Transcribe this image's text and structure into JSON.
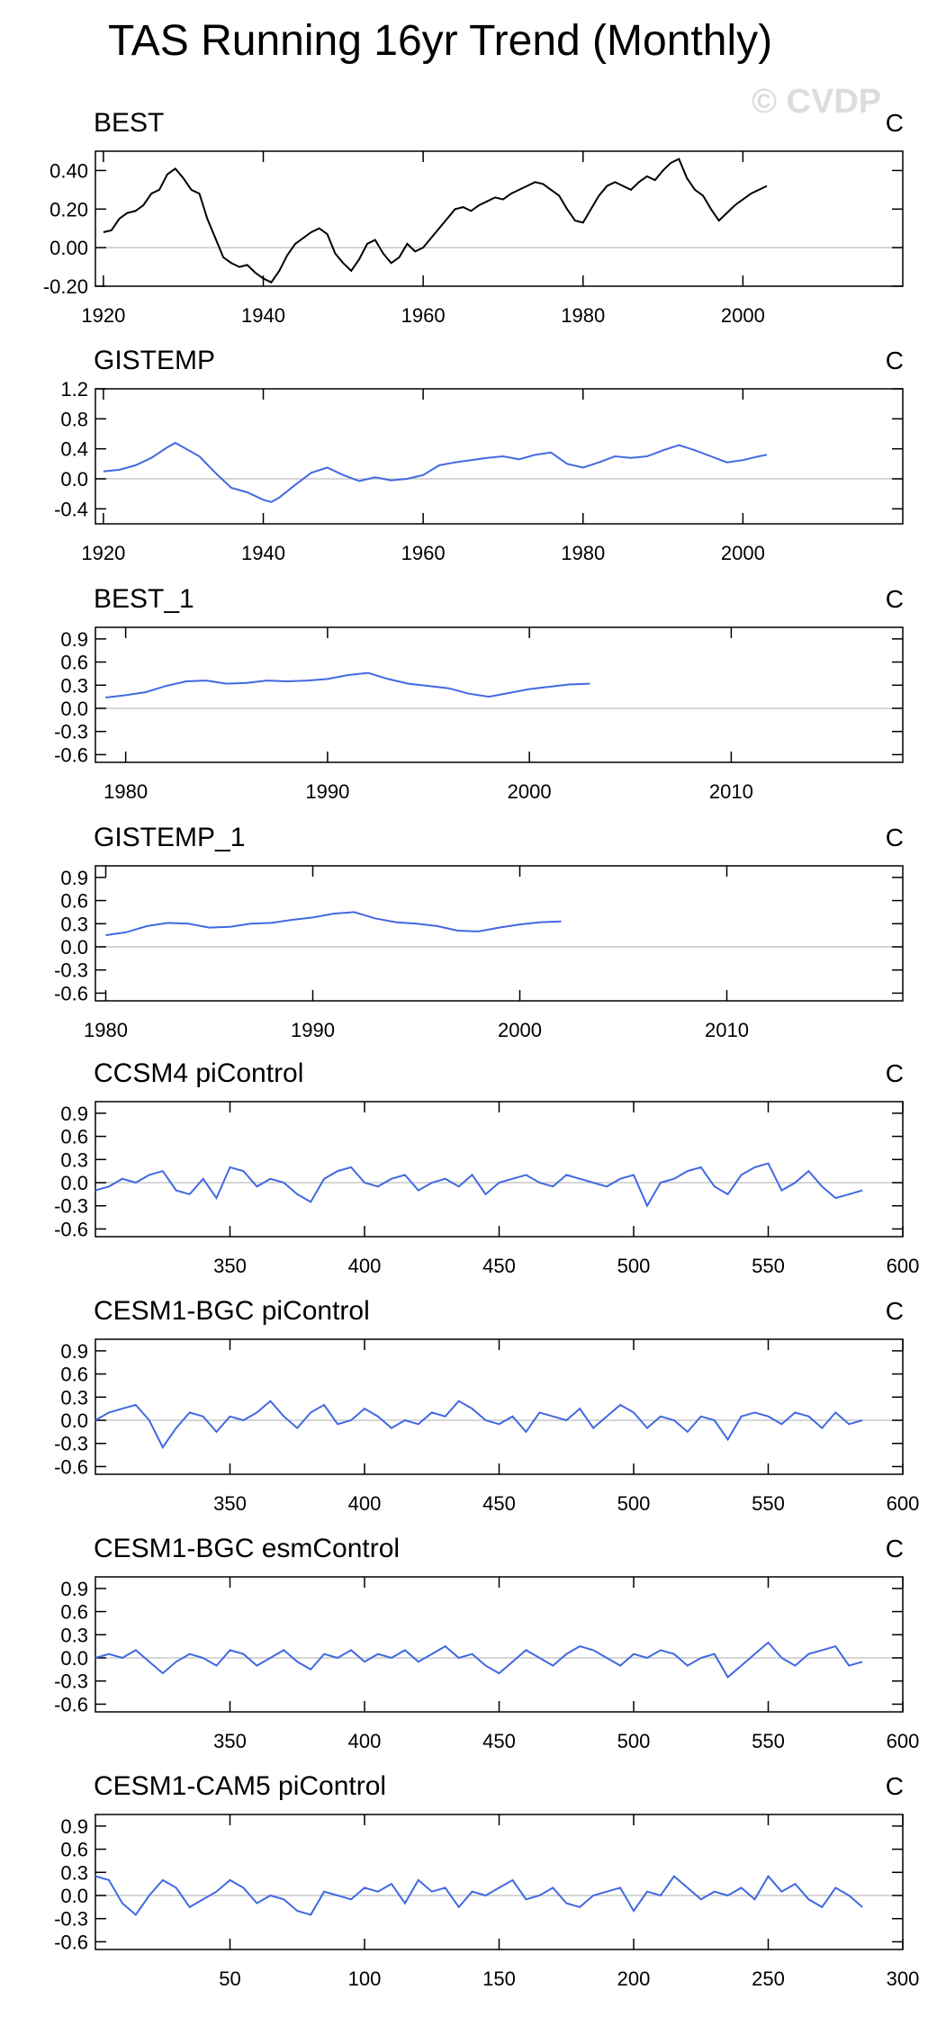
{
  "page": {
    "title": "TAS Running 16yr Trend (Monthly)",
    "watermark": "© CVDP"
  },
  "chart_data": [
    {
      "type": "line",
      "title": "BEST",
      "units": "C",
      "series_color": "#000000",
      "xlim": [
        1919,
        2020
      ],
      "xticks": [
        1920,
        1940,
        1960,
        1980,
        2000
      ],
      "ylim": [
        -0.2,
        0.5
      ],
      "yticks": [
        -0.2,
        0,
        0.2,
        0.4
      ],
      "ytick_labels": [
        "-0.20",
        "0.00",
        "0.20",
        "0.40"
      ],
      "x": [
        1920,
        1921,
        1922,
        1923,
        1924,
        1925,
        1926,
        1927,
        1928,
        1929,
        1930,
        1931,
        1932,
        1933,
        1934,
        1935,
        1936,
        1937,
        1938,
        1939,
        1940,
        1941,
        1942,
        1943,
        1944,
        1945,
        1946,
        1947,
        1948,
        1949,
        1950,
        1951,
        1952,
        1953,
        1954,
        1955,
        1956,
        1957,
        1958,
        1959,
        1960,
        1961,
        1962,
        1963,
        1964,
        1965,
        1966,
        1967,
        1968,
        1969,
        1970,
        1971,
        1972,
        1973,
        1974,
        1975,
        1976,
        1977,
        1978,
        1979,
        1980,
        1981,
        1982,
        1983,
        1984,
        1985,
        1986,
        1987,
        1988,
        1989,
        1990,
        1991,
        1992,
        1993,
        1994,
        1995,
        1996,
        1997,
        1998,
        1999,
        2000,
        2001,
        2002,
        2003
      ],
      "values": [
        0.08,
        0.09,
        0.15,
        0.18,
        0.19,
        0.22,
        0.28,
        0.3,
        0.38,
        0.41,
        0.36,
        0.3,
        0.28,
        0.15,
        0.05,
        -0.05,
        -0.08,
        -0.1,
        -0.09,
        -0.13,
        -0.16,
        -0.18,
        -0.12,
        -0.04,
        0.02,
        0.05,
        0.08,
        0.1,
        0.07,
        -0.03,
        -0.08,
        -0.12,
        -0.06,
        0.02,
        0.04,
        -0.03,
        -0.08,
        -0.05,
        0.02,
        -0.02,
        0.0,
        0.05,
        0.1,
        0.15,
        0.2,
        0.21,
        0.19,
        0.22,
        0.24,
        0.26,
        0.25,
        0.28,
        0.3,
        0.32,
        0.34,
        0.33,
        0.3,
        0.27,
        0.2,
        0.14,
        0.13,
        0.2,
        0.27,
        0.32,
        0.34,
        0.32,
        0.3,
        0.34,
        0.37,
        0.35,
        0.4,
        0.44,
        0.46,
        0.36,
        0.3,
        0.27,
        0.2,
        0.14,
        0.18,
        0.22,
        0.25,
        0.28,
        0.3,
        0.32
      ]
    },
    {
      "type": "line",
      "title": "GISTEMP",
      "units": "C",
      "series_color": "#4169e1",
      "xlim": [
        1919,
        2020
      ],
      "xticks": [
        1920,
        1940,
        1960,
        1980,
        2000
      ],
      "ylim": [
        -0.6,
        1.2
      ],
      "yticks": [
        -0.4,
        0,
        0.4,
        0.8,
        1.2
      ],
      "ytick_labels": [
        "-0.4",
        "0.0",
        "0.4",
        "0.8",
        "1.2"
      ],
      "x": [
        1920,
        1922,
        1924,
        1926,
        1928,
        1929,
        1930,
        1932,
        1934,
        1936,
        1938,
        1940,
        1941,
        1942,
        1944,
        1946,
        1948,
        1950,
        1952,
        1954,
        1956,
        1958,
        1960,
        1962,
        1964,
        1966,
        1968,
        1970,
        1972,
        1974,
        1976,
        1978,
        1980,
        1982,
        1984,
        1986,
        1988,
        1990,
        1992,
        1994,
        1996,
        1998,
        2000,
        2002,
        2003
      ],
      "values": [
        0.1,
        0.12,
        0.18,
        0.28,
        0.42,
        0.48,
        0.42,
        0.3,
        0.08,
        -0.12,
        -0.18,
        -0.28,
        -0.31,
        -0.25,
        -0.08,
        0.08,
        0.15,
        0.05,
        -0.03,
        0.02,
        -0.02,
        0.0,
        0.05,
        0.18,
        0.22,
        0.25,
        0.28,
        0.3,
        0.26,
        0.32,
        0.35,
        0.2,
        0.15,
        0.22,
        0.3,
        0.28,
        0.3,
        0.38,
        0.45,
        0.38,
        0.3,
        0.22,
        0.25,
        0.3,
        0.32
      ]
    },
    {
      "type": "line",
      "title": "BEST_1",
      "units": "C",
      "series_color": "#4169e1",
      "xlim": [
        1978.5,
        2018.5
      ],
      "xticks": [
        1980,
        1990,
        2000,
        2010
      ],
      "ylim": [
        -0.7,
        1.05
      ],
      "yticks": [
        -0.6,
        -0.3,
        0,
        0.3,
        0.6,
        0.9
      ],
      "ytick_labels": [
        "-0.6",
        "-0.3",
        "0.0",
        "0.3",
        "0.6",
        "0.9"
      ],
      "x": [
        1979,
        1980,
        1981,
        1982,
        1983,
        1984,
        1985,
        1986,
        1987,
        1988,
        1989,
        1990,
        1991,
        1992,
        1993,
        1994,
        1995,
        1996,
        1997,
        1998,
        1999,
        2000,
        2001,
        2002,
        2003
      ],
      "values": [
        0.14,
        0.17,
        0.21,
        0.29,
        0.35,
        0.36,
        0.32,
        0.33,
        0.36,
        0.35,
        0.36,
        0.38,
        0.43,
        0.46,
        0.38,
        0.32,
        0.29,
        0.26,
        0.19,
        0.15,
        0.2,
        0.25,
        0.28,
        0.31,
        0.32
      ]
    },
    {
      "type": "line",
      "title": "GISTEMP_1",
      "units": "C",
      "series_color": "#4169e1",
      "xlim": [
        1979.5,
        2018.5
      ],
      "xticks": [
        1980,
        1990,
        2000,
        2010
      ],
      "ylim": [
        -0.7,
        1.05
      ],
      "yticks": [
        -0.6,
        -0.3,
        0,
        0.3,
        0.6,
        0.9
      ],
      "ytick_labels": [
        "-0.6",
        "-0.3",
        "0.0",
        "0.3",
        "0.6",
        "0.9"
      ],
      "x": [
        1980,
        1981,
        1982,
        1983,
        1984,
        1985,
        1986,
        1987,
        1988,
        1989,
        1990,
        1991,
        1992,
        1993,
        1994,
        1995,
        1996,
        1997,
        1998,
        1999,
        2000,
        2001,
        2002
      ],
      "values": [
        0.15,
        0.19,
        0.27,
        0.31,
        0.3,
        0.25,
        0.26,
        0.3,
        0.31,
        0.35,
        0.38,
        0.43,
        0.45,
        0.37,
        0.32,
        0.3,
        0.27,
        0.21,
        0.2,
        0.25,
        0.29,
        0.32,
        0.33
      ]
    },
    {
      "type": "line",
      "title": "CCSM4 piControl",
      "units": "C",
      "series_color": "#4169e1",
      "xlim": [
        300,
        600
      ],
      "xticks": [
        350,
        400,
        450,
        500,
        550,
        600
      ],
      "ylim": [
        -0.7,
        1.05
      ],
      "yticks": [
        -0.6,
        -0.3,
        0,
        0.3,
        0.6,
        0.9
      ],
      "ytick_labels": [
        "-0.6",
        "-0.3",
        "0.0",
        "0.3",
        "0.6",
        "0.9"
      ],
      "x": [
        300,
        305,
        310,
        315,
        320,
        325,
        330,
        335,
        340,
        345,
        350,
        355,
        360,
        365,
        370,
        375,
        380,
        385,
        390,
        395,
        400,
        405,
        410,
        415,
        420,
        425,
        430,
        435,
        440,
        445,
        450,
        455,
        460,
        465,
        470,
        475,
        480,
        485,
        490,
        495,
        500,
        505,
        510,
        515,
        520,
        525,
        530,
        535,
        540,
        545,
        550,
        555,
        560,
        565,
        570,
        575,
        580,
        585
      ],
      "values": [
        -0.1,
        -0.05,
        0.05,
        0.0,
        0.1,
        0.15,
        -0.1,
        -0.15,
        0.05,
        -0.2,
        0.2,
        0.15,
        -0.05,
        0.05,
        0.0,
        -0.15,
        -0.25,
        0.05,
        0.15,
        0.2,
        0.0,
        -0.05,
        0.05,
        0.1,
        -0.1,
        0.0,
        0.05,
        -0.05,
        0.1,
        -0.15,
        0.0,
        0.05,
        0.1,
        0.0,
        -0.05,
        0.1,
        0.05,
        0.0,
        -0.05,
        0.05,
        0.1,
        -0.3,
        0.0,
        0.05,
        0.15,
        0.2,
        -0.05,
        -0.15,
        0.1,
        0.2,
        0.25,
        -0.1,
        0.0,
        0.15,
        -0.05,
        -0.2,
        -0.15,
        -0.1
      ]
    },
    {
      "type": "line",
      "title": "CESM1-BGC piControl",
      "units": "C",
      "series_color": "#4169e1",
      "xlim": [
        300,
        600
      ],
      "xticks": [
        350,
        400,
        450,
        500,
        550,
        600
      ],
      "ylim": [
        -0.7,
        1.05
      ],
      "yticks": [
        -0.6,
        -0.3,
        0,
        0.3,
        0.6,
        0.9
      ],
      "ytick_labels": [
        "-0.6",
        "-0.3",
        "0.0",
        "0.3",
        "0.6",
        "0.9"
      ],
      "x": [
        300,
        305,
        310,
        315,
        320,
        325,
        330,
        335,
        340,
        345,
        350,
        355,
        360,
        365,
        370,
        375,
        380,
        385,
        390,
        395,
        400,
        405,
        410,
        415,
        420,
        425,
        430,
        435,
        440,
        445,
        450,
        455,
        460,
        465,
        470,
        475,
        480,
        485,
        490,
        495,
        500,
        505,
        510,
        515,
        520,
        525,
        530,
        535,
        540,
        545,
        550,
        555,
        560,
        565,
        570,
        575,
        580,
        585
      ],
      "values": [
        0.0,
        0.1,
        0.15,
        0.2,
        0.0,
        -0.35,
        -0.1,
        0.1,
        0.05,
        -0.15,
        0.05,
        0.0,
        0.1,
        0.25,
        0.05,
        -0.1,
        0.1,
        0.2,
        -0.05,
        0.0,
        0.15,
        0.05,
        -0.1,
        0.0,
        -0.05,
        0.1,
        0.05,
        0.25,
        0.15,
        0.0,
        -0.05,
        0.05,
        -0.15,
        0.1,
        0.05,
        0.0,
        0.15,
        -0.1,
        0.05,
        0.2,
        0.1,
        -0.1,
        0.05,
        0.0,
        -0.15,
        0.05,
        0.0,
        -0.25,
        0.05,
        0.1,
        0.05,
        -0.05,
        0.1,
        0.05,
        -0.1,
        0.1,
        -0.05,
        0.0
      ]
    },
    {
      "type": "line",
      "title": "CESM1-BGC esmControl",
      "units": "C",
      "series_color": "#4169e1",
      "xlim": [
        300,
        600
      ],
      "xticks": [
        350,
        400,
        450,
        500,
        550,
        600
      ],
      "ylim": [
        -0.7,
        1.05
      ],
      "yticks": [
        -0.6,
        -0.3,
        0,
        0.3,
        0.6,
        0.9
      ],
      "ytick_labels": [
        "-0.6",
        "-0.3",
        "0.0",
        "0.3",
        "0.6",
        "0.9"
      ],
      "x": [
        300,
        305,
        310,
        315,
        320,
        325,
        330,
        335,
        340,
        345,
        350,
        355,
        360,
        365,
        370,
        375,
        380,
        385,
        390,
        395,
        400,
        405,
        410,
        415,
        420,
        425,
        430,
        435,
        440,
        445,
        450,
        455,
        460,
        465,
        470,
        475,
        480,
        485,
        490,
        495,
        500,
        505,
        510,
        515,
        520,
        525,
        530,
        535,
        540,
        545,
        550,
        555,
        560,
        565,
        570,
        575,
        580,
        585
      ],
      "values": [
        0.0,
        0.05,
        0.0,
        0.1,
        -0.05,
        -0.2,
        -0.05,
        0.05,
        0.0,
        -0.1,
        0.1,
        0.05,
        -0.1,
        0.0,
        0.1,
        -0.05,
        -0.15,
        0.05,
        0.0,
        0.1,
        -0.05,
        0.05,
        0.0,
        0.1,
        -0.05,
        0.05,
        0.15,
        0.0,
        0.05,
        -0.1,
        -0.2,
        -0.05,
        0.1,
        0.0,
        -0.1,
        0.05,
        0.15,
        0.1,
        0.0,
        -0.1,
        0.05,
        0.0,
        0.1,
        0.05,
        -0.1,
        0.0,
        0.05,
        -0.25,
        -0.1,
        0.05,
        0.2,
        0.0,
        -0.1,
        0.05,
        0.1,
        0.15,
        -0.1,
        -0.05
      ]
    },
    {
      "type": "line",
      "title": "CESM1-CAM5 piControl",
      "units": "C",
      "series_color": "#4169e1",
      "xlim": [
        0,
        300
      ],
      "xticks": [
        50,
        100,
        150,
        200,
        250,
        300
      ],
      "ylim": [
        -0.7,
        1.05
      ],
      "yticks": [
        -0.6,
        -0.3,
        0,
        0.3,
        0.6,
        0.9
      ],
      "ytick_labels": [
        "-0.6",
        "-0.3",
        "0.0",
        "0.3",
        "0.6",
        "0.9"
      ],
      "x": [
        0,
        5,
        10,
        15,
        20,
        25,
        30,
        35,
        40,
        45,
        50,
        55,
        60,
        65,
        70,
        75,
        80,
        85,
        90,
        95,
        100,
        105,
        110,
        115,
        120,
        125,
        130,
        135,
        140,
        145,
        150,
        155,
        160,
        165,
        170,
        175,
        180,
        185,
        190,
        195,
        200,
        205,
        210,
        215,
        220,
        225,
        230,
        235,
        240,
        245,
        250,
        255,
        260,
        265,
        270,
        275,
        280,
        285
      ],
      "values": [
        0.25,
        0.2,
        -0.1,
        -0.25,
        0.0,
        0.2,
        0.1,
        -0.15,
        -0.05,
        0.05,
        0.2,
        0.1,
        -0.1,
        0.0,
        -0.05,
        -0.2,
        -0.25,
        0.05,
        0.0,
        -0.05,
        0.1,
        0.05,
        0.15,
        -0.1,
        0.2,
        0.05,
        0.1,
        -0.15,
        0.05,
        0.0,
        0.1,
        0.2,
        -0.05,
        0.0,
        0.1,
        -0.1,
        -0.15,
        0.0,
        0.05,
        0.1,
        -0.2,
        0.05,
        0.0,
        0.25,
        0.1,
        -0.05,
        0.05,
        0.0,
        0.1,
        -0.05,
        0.25,
        0.05,
        0.15,
        -0.05,
        -0.15,
        0.1,
        0.0,
        -0.15
      ]
    }
  ]
}
